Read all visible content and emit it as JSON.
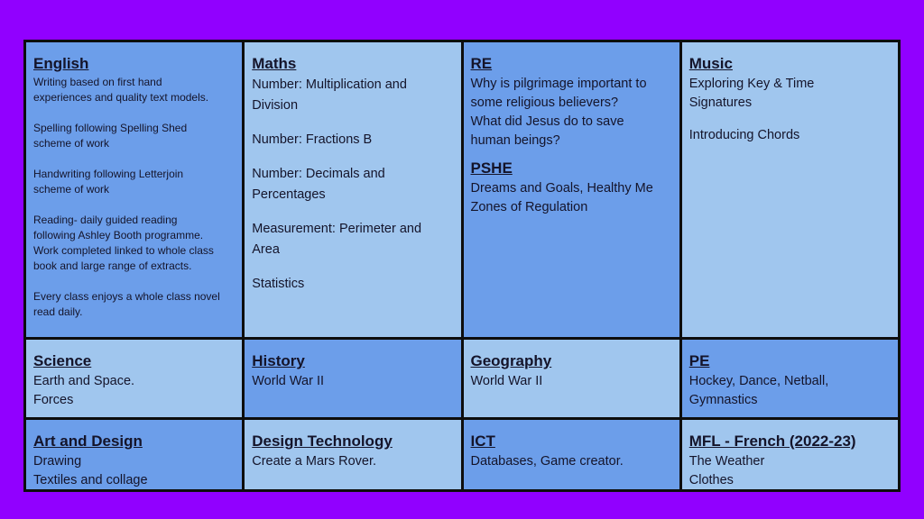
{
  "rows": [
    [
      {
        "sections": [
          {
            "title": "English",
            "paragraphs": [
              [
                "Writing based on first hand",
                "experiences and quality text models."
              ],
              [
                "Spelling following  Spelling Shed",
                "scheme of work"
              ],
              [
                "Handwriting following Letterjoin",
                "scheme of work"
              ],
              [
                "Reading- daily guided reading",
                "following Ashley Booth programme.",
                "Work completed linked to whole class",
                "book and large range of extracts."
              ],
              [
                "Every class enjoys a whole class novel",
                "read daily."
              ]
            ]
          }
        ]
      },
      {
        "sections": [
          {
            "title": "Maths",
            "paragraphs": [
              [
                "Number: Multiplication and",
                "Division"
              ],
              [
                "Number: Fractions B"
              ],
              [
                "Number: Decimals and",
                "Percentages"
              ],
              [
                "Measurement: Perimeter and",
                "Area"
              ],
              [
                "Statistics"
              ]
            ]
          }
        ]
      },
      {
        "sections": [
          {
            "title": "RE",
            "paragraphs": [
              [
                "Why is pilgrimage important to",
                "some religious believers?",
                "What did Jesus do to save",
                "human beings?"
              ]
            ]
          },
          {
            "title": "PSHE",
            "paragraphs": [
              [
                "Dreams and Goals, Healthy Me",
                "Zones of Regulation"
              ]
            ]
          }
        ]
      },
      {
        "sections": [
          {
            "title": "Music",
            "paragraphs": [
              [
                "Exploring Key & Time",
                "Signatures"
              ],
              [
                "Introducing Chords"
              ]
            ]
          }
        ]
      }
    ],
    [
      {
        "sections": [
          {
            "title": "Science",
            "paragraphs": [
              [
                "Earth and Space.",
                "Forces"
              ]
            ]
          }
        ]
      },
      {
        "sections": [
          {
            "title": "History",
            "paragraphs": [
              [
                "World War II"
              ]
            ]
          }
        ]
      },
      {
        "sections": [
          {
            "title": "Geography",
            "paragraphs": [
              [
                "World War II"
              ]
            ]
          }
        ]
      },
      {
        "sections": [
          {
            "title": "PE",
            "paragraphs": [
              [
                "Hockey, Dance, Netball,",
                "Gymnastics"
              ]
            ]
          }
        ]
      }
    ],
    [
      {
        "sections": [
          {
            "title": "Art and Design",
            "paragraphs": [
              [
                "Drawing",
                "Textiles and collage"
              ]
            ]
          }
        ]
      },
      {
        "sections": [
          {
            "title": "Design Technology",
            "paragraphs": [
              [
                "Create a Mars Rover."
              ]
            ]
          }
        ]
      },
      {
        "sections": [
          {
            "title": "ICT",
            "paragraphs": [
              [
                "Databases, Game creator."
              ]
            ]
          }
        ]
      },
      {
        "sections": [
          {
            "title": "MFL - French (2022-23)",
            "paragraphs": [
              [
                "The Weather",
                "Clothes"
              ]
            ]
          }
        ]
      }
    ]
  ]
}
